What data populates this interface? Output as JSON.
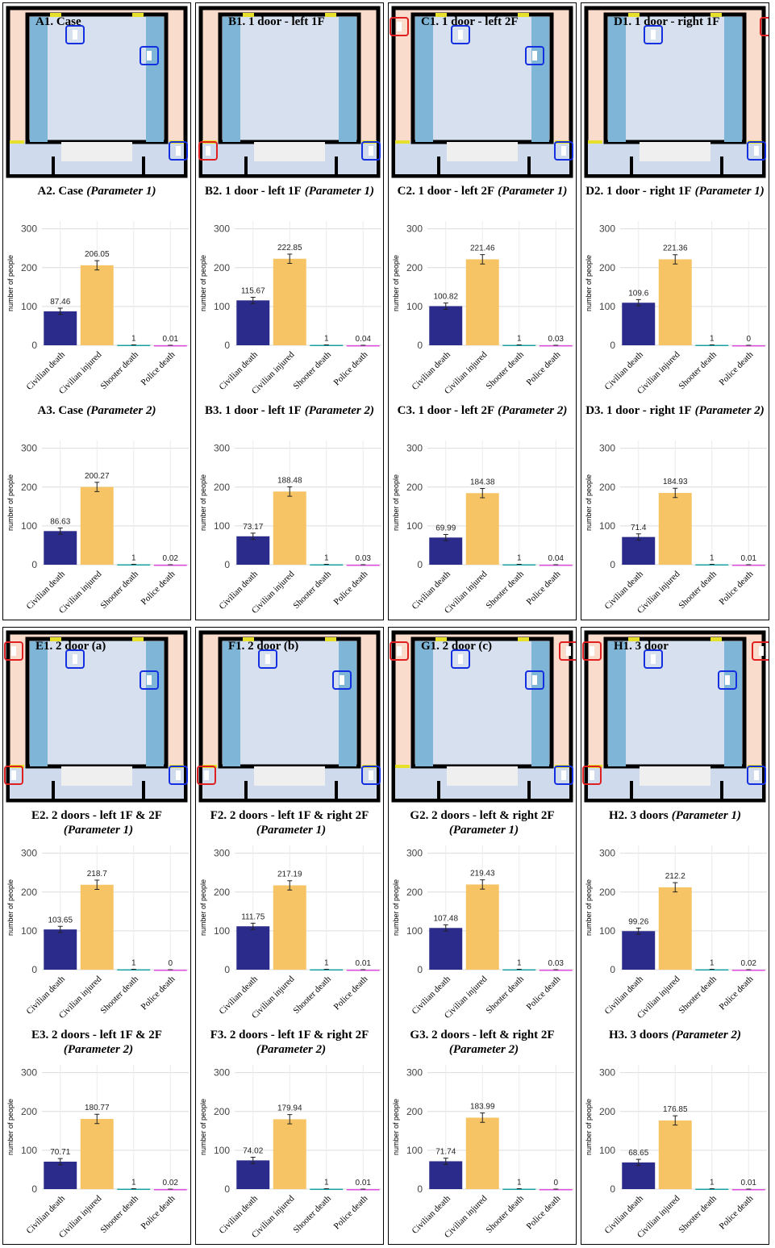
{
  "floorplans": [
    {
      "title": "A1. Case"
    },
    {
      "title": "B1. 1 door - left 1F"
    },
    {
      "title": "C1. 1 door - left 2F"
    },
    {
      "title": "D1. 1 door - right 1F"
    },
    {
      "title": "E1. 2 door (a)"
    },
    {
      "title": "F1.  2 door (b)"
    },
    {
      "title": "G1. 2 door (c)"
    },
    {
      "title": "H1. 3 door"
    }
  ],
  "chart_data": [
    {
      "type": "bar",
      "title": "A2. Case",
      "subtitle": "(Parameter 1)",
      "y_label": "number of people",
      "categories": [
        "Civilian death",
        "Civilian injured",
        "Shooter death",
        "Police death"
      ],
      "values": [
        87.46,
        206.05,
        1,
        0.01
      ],
      "errors": [
        8,
        12,
        0,
        0
      ],
      "colors": [
        "#2b2b8c",
        "#f6c465",
        "#17a2a2",
        "#e04ce0"
      ],
      "ylim": [
        0,
        320
      ],
      "yticks": [
        0,
        100,
        200,
        300
      ],
      "grid": true
    },
    {
      "type": "bar",
      "title": "A3. Case",
      "subtitle": "(Parameter 2)",
      "y_label": "number of people",
      "categories": [
        "Civilian death",
        "Civilian injured",
        "Shooter death",
        "Police death"
      ],
      "values": [
        86.63,
        200.27,
        1,
        0.02
      ],
      "errors": [
        8,
        12,
        0,
        0
      ],
      "colors": [
        "#2b2b8c",
        "#f6c465",
        "#17a2a2",
        "#e04ce0"
      ],
      "ylim": [
        0,
        320
      ],
      "yticks": [
        0,
        100,
        200,
        300
      ],
      "grid": true
    },
    {
      "type": "bar",
      "title": "B2. 1 door - left 1F",
      "subtitle": "(Parameter 1)",
      "y_label": "number of people",
      "categories": [
        "Civilian death",
        "Civilian injured",
        "Shooter death",
        "Police death"
      ],
      "values": [
        115.67,
        222.85,
        1,
        0.04
      ],
      "errors": [
        8,
        12,
        0,
        0
      ],
      "colors": [
        "#2b2b8c",
        "#f6c465",
        "#17a2a2",
        "#e04ce0"
      ],
      "ylim": [
        0,
        320
      ],
      "yticks": [
        0,
        100,
        200,
        300
      ],
      "grid": true
    },
    {
      "type": "bar",
      "title": "B3. 1 door - left 1F",
      "subtitle": "(Parameter 2)",
      "y_label": "number of people",
      "categories": [
        "Civilian death",
        "Civilian injured",
        "Shooter death",
        "Police death"
      ],
      "values": [
        73.17,
        188.48,
        1,
        0.03
      ],
      "errors": [
        8,
        12,
        0,
        0
      ],
      "colors": [
        "#2b2b8c",
        "#f6c465",
        "#17a2a2",
        "#e04ce0"
      ],
      "ylim": [
        0,
        320
      ],
      "yticks": [
        0,
        100,
        200,
        300
      ],
      "grid": true
    },
    {
      "type": "bar",
      "title": "C2. 1 door - left 2F",
      "subtitle": "(Parameter 1)",
      "y_label": "number of people",
      "categories": [
        "Civilian death",
        "Civilian injured",
        "Shooter death",
        "Police death"
      ],
      "values": [
        100.82,
        221.46,
        1,
        0.03
      ],
      "errors": [
        8,
        12,
        0,
        0
      ],
      "colors": [
        "#2b2b8c",
        "#f6c465",
        "#17a2a2",
        "#e04ce0"
      ],
      "ylim": [
        0,
        320
      ],
      "yticks": [
        0,
        100,
        200,
        300
      ],
      "grid": true
    },
    {
      "type": "bar",
      "title": "C3. 1 door - left 2F",
      "subtitle": "(Parameter 2)",
      "y_label": "number of people",
      "categories": [
        "Civilian death",
        "Civilian injured",
        "Shooter death",
        "Police death"
      ],
      "values": [
        69.99,
        184.38,
        1,
        0.04
      ],
      "errors": [
        8,
        12,
        0,
        0
      ],
      "colors": [
        "#2b2b8c",
        "#f6c465",
        "#17a2a2",
        "#e04ce0"
      ],
      "ylim": [
        0,
        320
      ],
      "yticks": [
        0,
        100,
        200,
        300
      ],
      "grid": true
    },
    {
      "type": "bar",
      "title": "D2. 1 door - right 1F",
      "subtitle": "(Parameter 1)",
      "y_label": "number of people",
      "categories": [
        "Civilian death",
        "Civilian injured",
        "Shooter death",
        "Police death"
      ],
      "values": [
        109.6,
        221.36,
        1,
        0
      ],
      "errors": [
        8,
        12,
        0,
        0
      ],
      "colors": [
        "#2b2b8c",
        "#f6c465",
        "#17a2a2",
        "#e04ce0"
      ],
      "ylim": [
        0,
        320
      ],
      "yticks": [
        0,
        100,
        200,
        300
      ],
      "grid": true
    },
    {
      "type": "bar",
      "title": "D3. 1 door - right 1F",
      "subtitle": "(Parameter 2)",
      "y_label": "number of people",
      "categories": [
        "Civilian death",
        "Civilian injured",
        "Shooter death",
        "Police death"
      ],
      "values": [
        71.4,
        184.93,
        1,
        0.01
      ],
      "errors": [
        8,
        12,
        0,
        0
      ],
      "colors": [
        "#2b2b8c",
        "#f6c465",
        "#17a2a2",
        "#e04ce0"
      ],
      "ylim": [
        0,
        320
      ],
      "yticks": [
        0,
        100,
        200,
        300
      ],
      "grid": true
    },
    {
      "type": "bar",
      "title": "E2. 2 doors - left 1F & 2F",
      "subtitle": "(Parameter 1)",
      "y_label": "number of people",
      "categories": [
        "Civilian death",
        "Civilian injured",
        "Shooter death",
        "Police death"
      ],
      "values": [
        103.65,
        218.7,
        1,
        0
      ],
      "errors": [
        8,
        12,
        0,
        0
      ],
      "colors": [
        "#2b2b8c",
        "#f6c465",
        "#17a2a2",
        "#e04ce0"
      ],
      "ylim": [
        0,
        320
      ],
      "yticks": [
        0,
        100,
        200,
        300
      ],
      "grid": true
    },
    {
      "type": "bar",
      "title": "E3. 2 doors - left 1F & 2F",
      "subtitle": "(Parameter 2)",
      "y_label": "number of people",
      "categories": [
        "Civilian death",
        "Civilian injured",
        "Shooter death",
        "Police death"
      ],
      "values": [
        70.71,
        180.77,
        1,
        0.02
      ],
      "errors": [
        8,
        12,
        0,
        0
      ],
      "colors": [
        "#2b2b8c",
        "#f6c465",
        "#17a2a2",
        "#e04ce0"
      ],
      "ylim": [
        0,
        320
      ],
      "yticks": [
        0,
        100,
        200,
        300
      ],
      "grid": true
    },
    {
      "type": "bar",
      "title": "F2. 2 doors - left 1F & right 2F",
      "subtitle": "(Parameter 1)",
      "y_label": "number of people",
      "categories": [
        "Civilian death",
        "Civilian injured",
        "Shooter death",
        "Police death"
      ],
      "values": [
        111.75,
        217.19,
        1,
        0.01
      ],
      "errors": [
        8,
        12,
        0,
        0
      ],
      "colors": [
        "#2b2b8c",
        "#f6c465",
        "#17a2a2",
        "#e04ce0"
      ],
      "ylim": [
        0,
        320
      ],
      "yticks": [
        0,
        100,
        200,
        300
      ],
      "grid": true
    },
    {
      "type": "bar",
      "title": "F3. 2 doors - left 1F & right 2F",
      "subtitle": "(Parameter 2)",
      "y_label": "number of people",
      "categories": [
        "Civilian death",
        "Civilian injured",
        "Shooter death",
        "Police death"
      ],
      "values": [
        74.02,
        179.94,
        1,
        0.01
      ],
      "errors": [
        8,
        12,
        0,
        0
      ],
      "colors": [
        "#2b2b8c",
        "#f6c465",
        "#17a2a2",
        "#e04ce0"
      ],
      "ylim": [
        0,
        320
      ],
      "yticks": [
        0,
        100,
        200,
        300
      ],
      "grid": true
    },
    {
      "type": "bar",
      "title": "G2. 2 doors - left & right 2F",
      "subtitle": "(Parameter 1)",
      "y_label": "number of people",
      "categories": [
        "Civilian death",
        "Civilian injured",
        "Shooter death",
        "Police death"
      ],
      "values": [
        107.48,
        219.43,
        1,
        0.03
      ],
      "errors": [
        8,
        12,
        0,
        0
      ],
      "colors": [
        "#2b2b8c",
        "#f6c465",
        "#17a2a2",
        "#e04ce0"
      ],
      "ylim": [
        0,
        320
      ],
      "yticks": [
        0,
        100,
        200,
        300
      ],
      "grid": true
    },
    {
      "type": "bar",
      "title": "G3. 2 doors - left & right 2F",
      "subtitle": "(Parameter 2)",
      "y_label": "number of people",
      "categories": [
        "Civilian death",
        "Civilian injured",
        "Shooter death",
        "Police death"
      ],
      "values": [
        71.74,
        183.99,
        1,
        0
      ],
      "errors": [
        8,
        12,
        0,
        0
      ],
      "colors": [
        "#2b2b8c",
        "#f6c465",
        "#17a2a2",
        "#e04ce0"
      ],
      "ylim": [
        0,
        320
      ],
      "yticks": [
        0,
        100,
        200,
        300
      ],
      "grid": true
    },
    {
      "type": "bar",
      "title": "H2. 3 doors",
      "subtitle": "(Parameter 1)",
      "y_label": "number of people",
      "categories": [
        "Civilian death",
        "Civilian injured",
        "Shooter death",
        "Police death"
      ],
      "values": [
        99.26,
        212.2,
        1,
        0.02
      ],
      "errors": [
        8,
        12,
        0,
        0
      ],
      "colors": [
        "#2b2b8c",
        "#f6c465",
        "#17a2a2",
        "#e04ce0"
      ],
      "ylim": [
        0,
        320
      ],
      "yticks": [
        0,
        100,
        200,
        300
      ],
      "grid": true
    },
    {
      "type": "bar",
      "title": "H3. 3 doors",
      "subtitle": "(Parameter 2)",
      "y_label": "number of people",
      "categories": [
        "Civilian death",
        "Civilian injured",
        "Shooter death",
        "Police death"
      ],
      "values": [
        68.65,
        176.85,
        1,
        0.01
      ],
      "errors": [
        8,
        12,
        0,
        0
      ],
      "colors": [
        "#2b2b8c",
        "#f6c465",
        "#17a2a2",
        "#e04ce0"
      ],
      "ylim": [
        0,
        320
      ],
      "yticks": [
        0,
        100,
        200,
        300
      ],
      "grid": true
    }
  ]
}
